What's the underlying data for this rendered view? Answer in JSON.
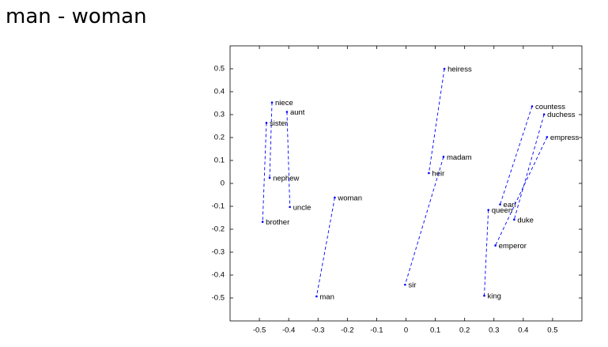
{
  "chart_data": {
    "type": "scatter",
    "title": "man - woman",
    "color": "#0000ff",
    "xlim": [
      -0.6,
      0.6
    ],
    "ylim": [
      -0.6,
      0.6
    ],
    "xticks": [
      -0.5,
      -0.4,
      -0.3,
      -0.2,
      -0.1,
      0,
      0.1,
      0.2,
      0.3,
      0.4,
      0.5
    ],
    "yticks": [
      -0.5,
      -0.4,
      -0.3,
      -0.2,
      -0.1,
      0,
      0.1,
      0.2,
      0.3,
      0.4,
      0.5
    ],
    "pairs": [
      [
        {
          "label": "niece",
          "x": -0.457,
          "y": 0.353
        },
        {
          "label": "nephew",
          "x": -0.465,
          "y": 0.024
        }
      ],
      [
        {
          "label": "aunt",
          "x": -0.406,
          "y": 0.312
        },
        {
          "label": "uncle",
          "x": -0.396,
          "y": -0.103
        }
      ],
      [
        {
          "label": "sister",
          "x": -0.476,
          "y": 0.264
        },
        {
          "label": "brother",
          "x": -0.489,
          "y": -0.168
        }
      ],
      [
        {
          "label": "woman",
          "x": -0.243,
          "y": -0.062
        },
        {
          "label": "man",
          "x": -0.305,
          "y": -0.493
        }
      ],
      [
        {
          "label": "heiress",
          "x": 0.131,
          "y": 0.5
        },
        {
          "label": "heir",
          "x": 0.078,
          "y": 0.045
        }
      ],
      [
        {
          "label": "madam",
          "x": 0.128,
          "y": 0.116
        },
        {
          "label": "sir",
          "x": -0.003,
          "y": -0.442
        }
      ],
      [
        {
          "label": "countess",
          "x": 0.43,
          "y": 0.336
        },
        {
          "label": "earl",
          "x": 0.321,
          "y": -0.092
        }
      ],
      [
        {
          "label": "duchess",
          "x": 0.471,
          "y": 0.301
        },
        {
          "label": "duke",
          "x": 0.369,
          "y": -0.158
        }
      ],
      [
        {
          "label": "empress",
          "x": 0.481,
          "y": 0.202
        },
        {
          "label": "emperor",
          "x": 0.305,
          "y": -0.271
        }
      ],
      [
        {
          "label": "queen",
          "x": 0.281,
          "y": -0.116
        },
        {
          "label": "king",
          "x": 0.267,
          "y": -0.49
        }
      ]
    ]
  }
}
